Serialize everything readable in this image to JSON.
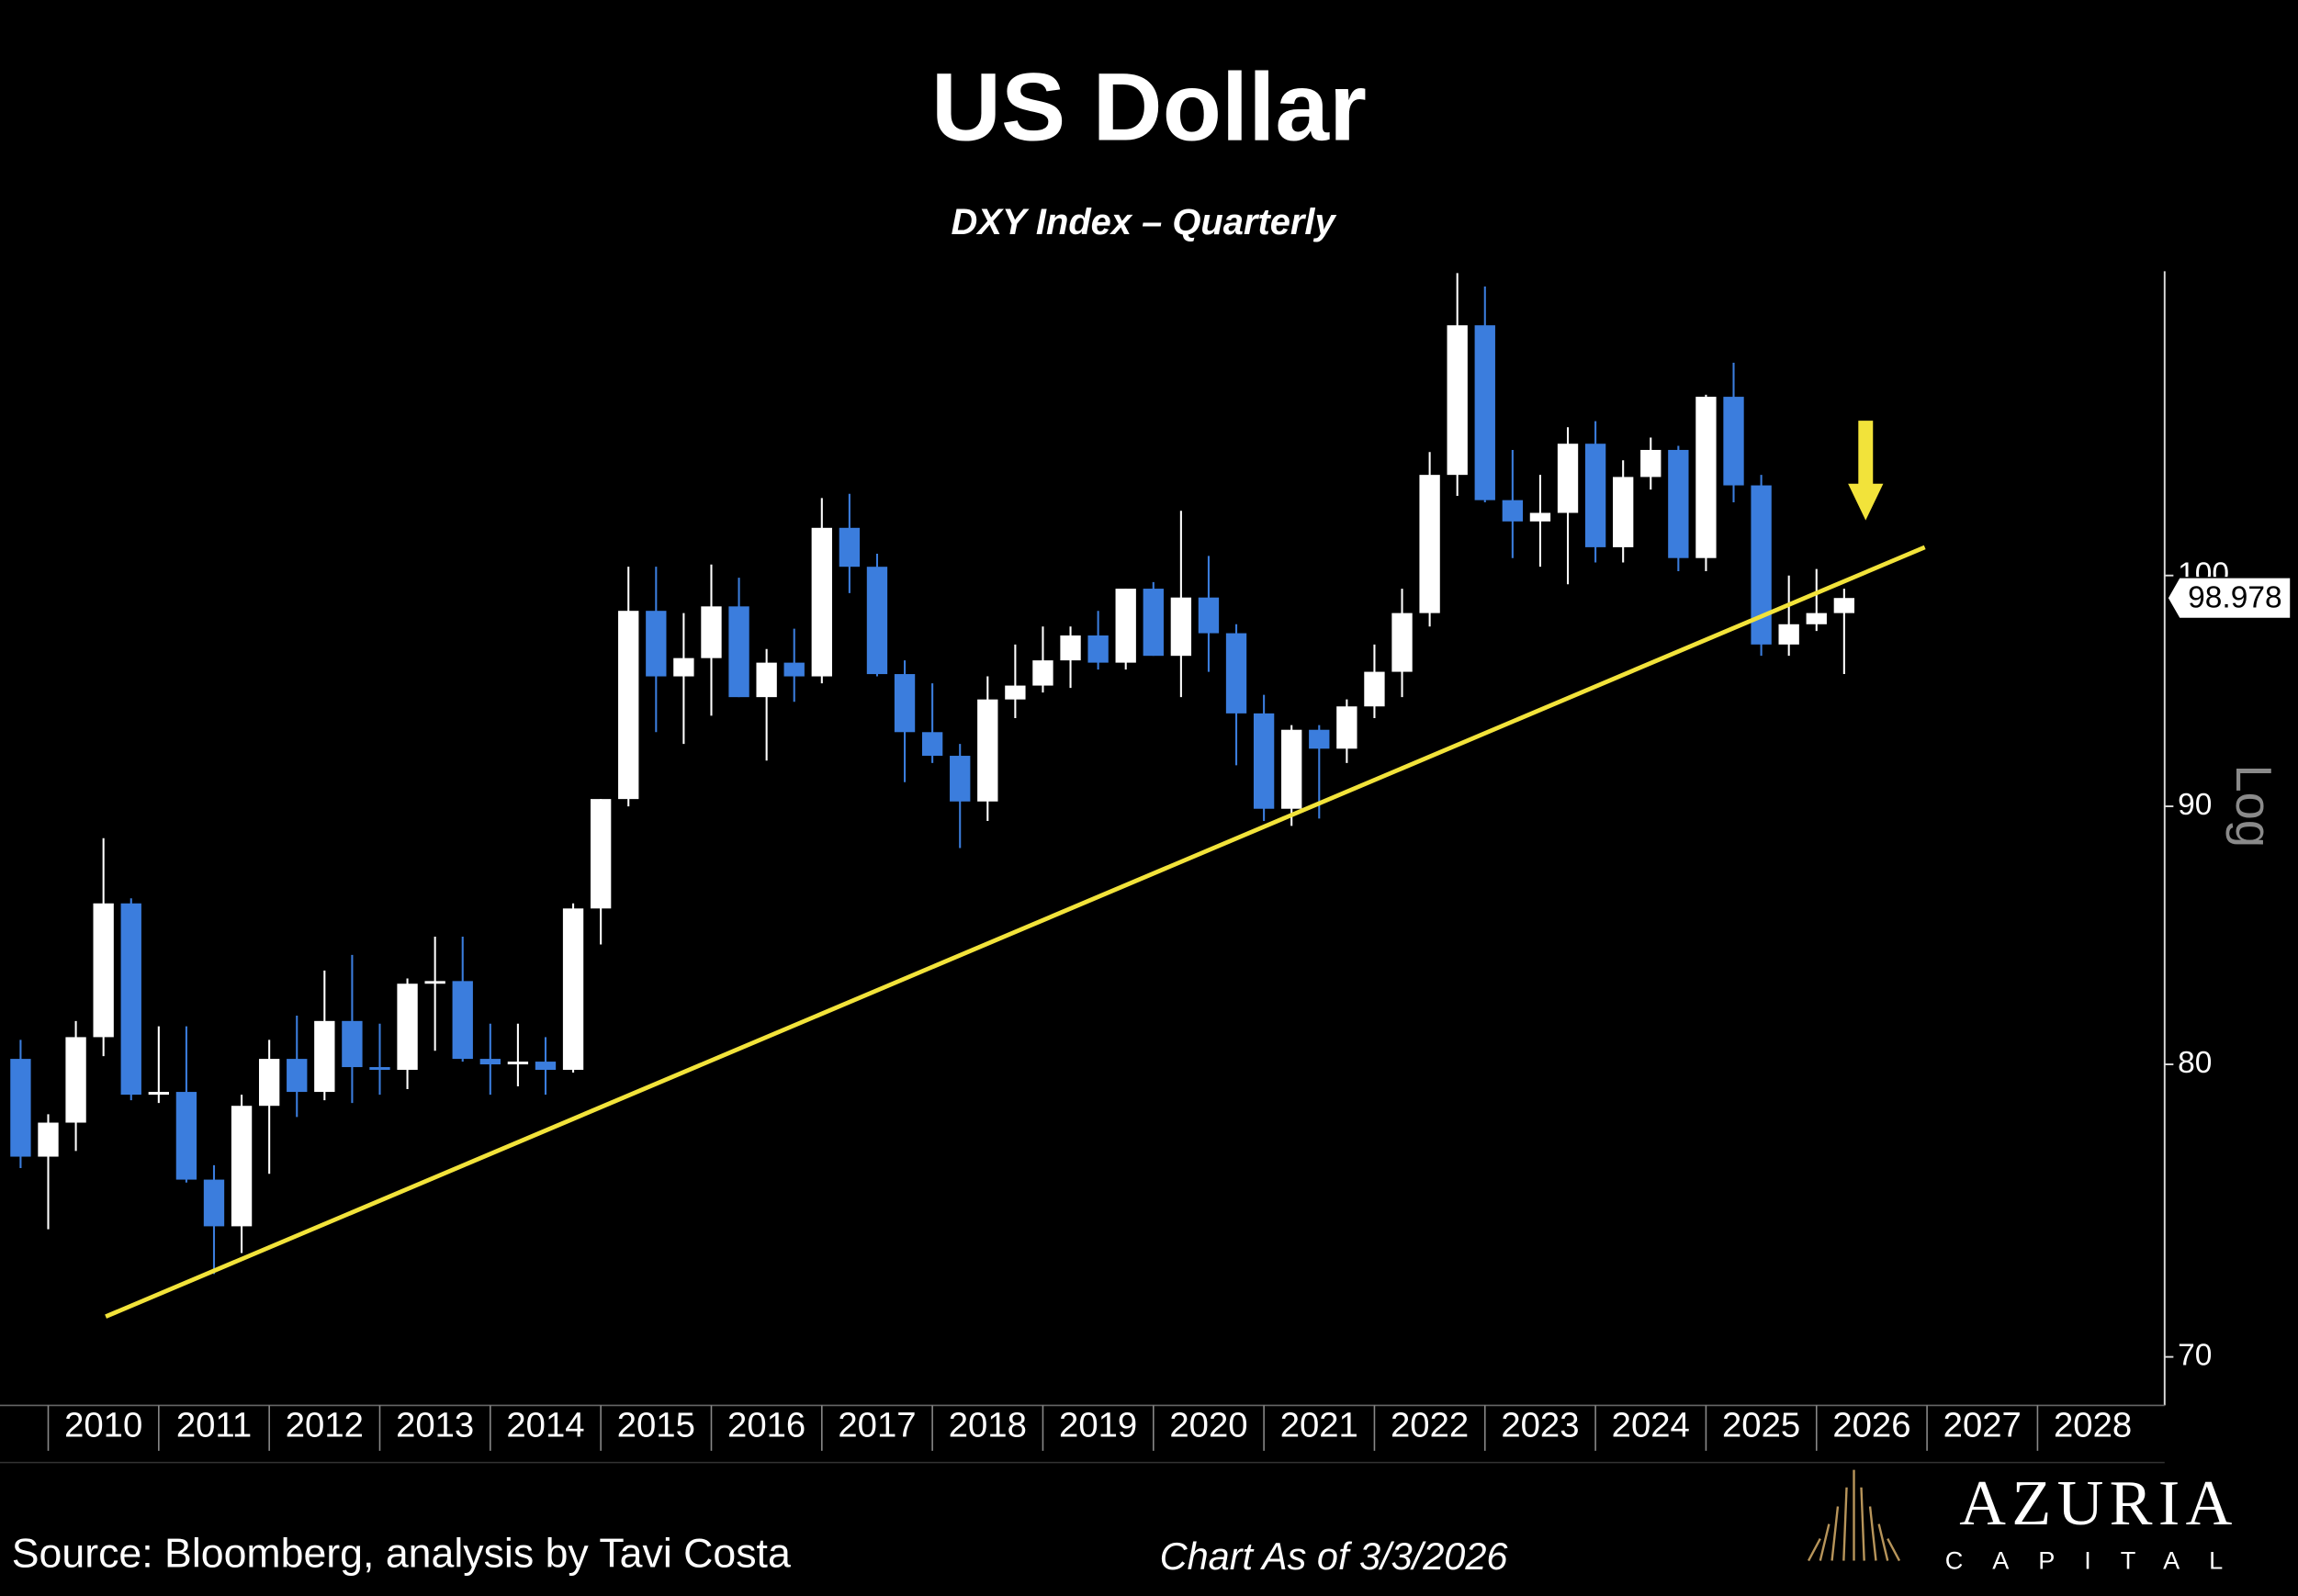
{
  "chart_data": {
    "type": "candlestick",
    "title": "US Dollar",
    "subtitle": "DXY Index – Quarterly",
    "scale_label": "Log",
    "log_scale": true,
    "candles": {
      "x": [
        2009.75,
        2010,
        2010.25,
        2010.5,
        2010.75,
        2011,
        2011.25,
        2011.5,
        2011.75,
        2012,
        2012.25,
        2012.5,
        2012.75,
        2013,
        2013.25,
        2013.5,
        2013.75,
        2014,
        2014.25,
        2014.5,
        2014.75,
        2015,
        2015.25,
        2015.5,
        2015.75,
        2016,
        2016.25,
        2016.5,
        2016.75,
        2017,
        2017.25,
        2017.5,
        2017.75,
        2018,
        2018.25,
        2018.5,
        2018.75,
        2019,
        2019.25,
        2019.5,
        2019.75,
        2020,
        2020.25,
        2020.5,
        2020.75,
        2021,
        2021.25,
        2021.5,
        2021.75,
        2022,
        2022.25,
        2022.5,
        2022.75,
        2023,
        2023.25,
        2023.5,
        2023.75,
        2024,
        2024.25,
        2024.5,
        2024.75,
        2025,
        2025.25,
        2025.5,
        2025.75,
        2026,
        2026.25
      ],
      "open": [
        80.2,
        76.7,
        77.9,
        81.0,
        86.1,
        78.9,
        79.0,
        75.9,
        74.3,
        78.5,
        80.2,
        79.0,
        81.6,
        79.9,
        79.8,
        83.0,
        83.1,
        80.2,
        80.0,
        80.1,
        79.8,
        85.9,
        90.3,
        98.4,
        95.5,
        96.3,
        98.6,
        94.6,
        96.1,
        95.5,
        102.2,
        100.4,
        95.6,
        93.1,
        92.1,
        90.2,
        94.5,
        95.1,
        96.2,
        97.3,
        96.1,
        99.4,
        96.4,
        99.0,
        97.4,
        93.9,
        89.9,
        93.2,
        92.4,
        94.2,
        95.7,
        98.3,
        104.7,
        112.1,
        103.5,
        102.5,
        102.9,
        106.2,
        101.3,
        104.6,
        105.9,
        100.8,
        108.5,
        104.2,
        96.9,
        97.8,
        98.3
      ],
      "high": [
        80.9,
        78.2,
        81.6,
        88.7,
        86.3,
        81.4,
        81.4,
        76.4,
        78.9,
        80.9,
        81.8,
        83.5,
        84.1,
        81.5,
        83.2,
        84.8,
        84.8,
        81.5,
        81.5,
        81.0,
        86.1,
        90.3,
        100.4,
        100.4,
        98.3,
        100.5,
        99.9,
        96.7,
        97.6,
        103.6,
        103.8,
        101.0,
        96.2,
        95.2,
        92.6,
        95.5,
        96.9,
        97.7,
        97.7,
        98.4,
        99.4,
        99.7,
        103.0,
        100.9,
        97.8,
        94.7,
        93.4,
        93.4,
        94.5,
        96.9,
        99.4,
        105.8,
        114.8,
        114.1,
        105.9,
        104.7,
        107.0,
        107.3,
        105.4,
        106.5,
        106.1,
        108.6,
        110.2,
        104.7,
        100.0,
        100.3,
        99.4
      ],
      "low": [
        76.3,
        74.2,
        76.9,
        80.3,
        78.7,
        78.6,
        75.8,
        72.7,
        73.4,
        76.1,
        78.1,
        78.7,
        78.6,
        78.9,
        79.1,
        80.5,
        80.1,
        78.9,
        79.2,
        78.9,
        79.7,
        84.5,
        90.0,
        93.1,
        92.6,
        93.8,
        94.6,
        91.9,
        94.4,
        95.2,
        99.2,
        95.5,
        91.0,
        91.8,
        88.3,
        89.4,
        93.7,
        94.8,
        95.0,
        95.8,
        95.8,
        96.4,
        94.6,
        95.7,
        91.7,
        89.4,
        89.2,
        89.5,
        91.8,
        93.7,
        94.6,
        97.7,
        103.7,
        103.4,
        100.8,
        100.4,
        99.6,
        100.6,
        100.6,
        104.0,
        100.2,
        100.2,
        103.4,
        96.4,
        96.4,
        97.5,
        95.6
      ],
      "close": [
        76.7,
        77.9,
        81.0,
        86.1,
        78.9,
        79.0,
        75.9,
        74.3,
        78.5,
        80.2,
        79.0,
        81.6,
        79.9,
        79.8,
        83.0,
        83.1,
        80.2,
        80.0,
        80.1,
        79.8,
        85.9,
        90.3,
        98.4,
        95.5,
        96.3,
        98.6,
        94.6,
        96.1,
        95.5,
        102.2,
        100.4,
        95.6,
        93.1,
        92.1,
        90.2,
        94.5,
        95.1,
        96.2,
        97.3,
        96.1,
        99.4,
        96.4,
        99.0,
        97.4,
        93.9,
        89.9,
        93.2,
        92.4,
        94.2,
        95.7,
        98.3,
        104.7,
        112.1,
        103.5,
        102.5,
        102.9,
        106.2,
        101.3,
        104.6,
        105.9,
        100.8,
        108.5,
        104.2,
        96.9,
        97.8,
        98.3,
        98.978
      ]
    },
    "up_color": "#ffffff",
    "down_color": "#3b7ddd",
    "trendline": {
      "x": [
        2010.52,
        2026.98
      ],
      "y": [
        71.3,
        101.3
      ],
      "color": "#f2e33a"
    },
    "xlim": [
      2009.63,
      2029.15
    ],
    "xticks": [
      2010,
      2011,
      2012,
      2013,
      2014,
      2015,
      2016,
      2017,
      2018,
      2019,
      2020,
      2021,
      2022,
      2023,
      2024,
      2025,
      2026,
      2027,
      2028
    ],
    "ylim": [
      68.56,
      114.9
    ],
    "yticks": [
      70,
      80,
      90,
      100
    ]
  },
  "footer": {
    "source": "Source: Bloomberg, analysis by Tavi Costa",
    "date_note": "Chart As of 3/3/2026",
    "logo_name": "AZURIA",
    "logo_sub": "CAPITAL"
  }
}
